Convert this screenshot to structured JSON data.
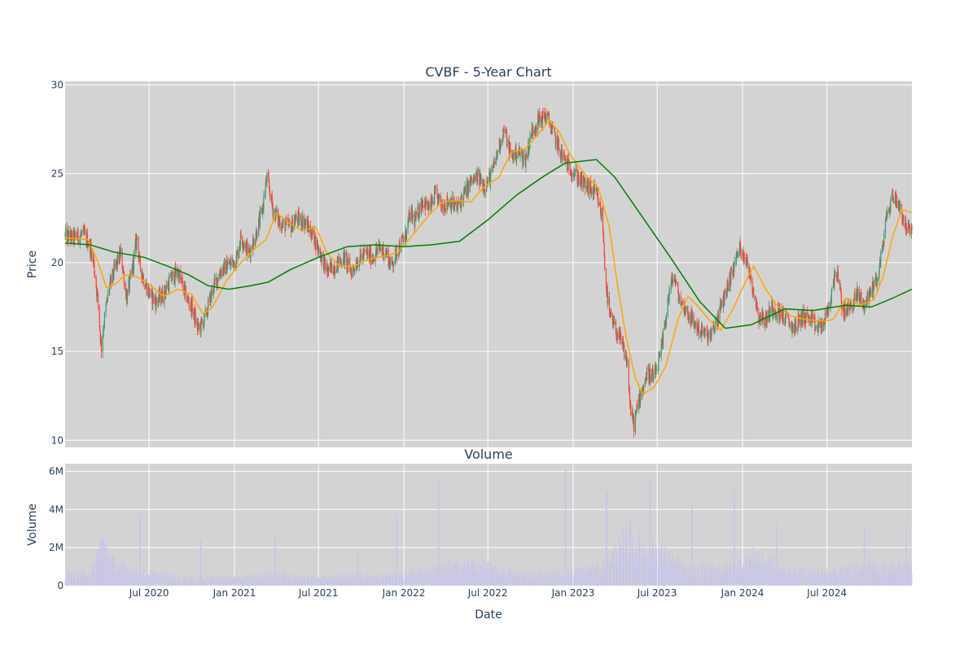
{
  "chart_data": [
    {
      "type": "candlestick",
      "title": "CVBF - 5-Year Chart",
      "xlabel": "",
      "ylabel": "Price",
      "ylim": [
        9.6,
        30.2
      ],
      "yticks": [
        10,
        15,
        20,
        25,
        30
      ],
      "grid": true,
      "colors": {
        "background": "#d3d3d3",
        "up": "#3d9970",
        "down": "#ff4136",
        "ma_short": "#ffa500",
        "ma_long": "#008000"
      },
      "price_path": [
        [
          "2020-01-02",
          21.5
        ],
        [
          "2020-01-20",
          21.4
        ],
        [
          "2020-02-10",
          21.6
        ],
        [
          "2020-02-20",
          21.2
        ],
        [
          "2020-03-01",
          20.5
        ],
        [
          "2020-03-12",
          18.0
        ],
        [
          "2020-03-20",
          15.2
        ],
        [
          "2020-03-25",
          16.5
        ],
        [
          "2020-04-05",
          18.5
        ],
        [
          "2020-04-20",
          19.8
        ],
        [
          "2020-05-01",
          20.5
        ],
        [
          "2020-05-14",
          18.0
        ],
        [
          "2020-05-25",
          19.5
        ],
        [
          "2020-06-05",
          21.5
        ],
        [
          "2020-06-10",
          20.0
        ],
        [
          "2020-06-20",
          19.0
        ],
        [
          "2020-07-01",
          18.3
        ],
        [
          "2020-07-15",
          17.8
        ],
        [
          "2020-08-01",
          18.2
        ],
        [
          "2020-08-15",
          19.0
        ],
        [
          "2020-09-01",
          19.5
        ],
        [
          "2020-09-20",
          18.0
        ],
        [
          "2020-10-01",
          17.5
        ],
        [
          "2020-10-15",
          16.2
        ],
        [
          "2020-10-28",
          16.8
        ],
        [
          "2020-11-05",
          17.5
        ],
        [
          "2020-11-15",
          18.5
        ],
        [
          "2020-12-01",
          19.5
        ],
        [
          "2020-12-15",
          19.8
        ],
        [
          "2021-01-05",
          20.2
        ],
        [
          "2021-01-15",
          21.5
        ],
        [
          "2021-02-01",
          20.5
        ],
        [
          "2021-02-15",
          21.5
        ],
        [
          "2021-03-01",
          22.8
        ],
        [
          "2021-03-12",
          24.8
        ],
        [
          "2021-03-25",
          23.0
        ],
        [
          "2021-04-10",
          22.2
        ],
        [
          "2021-05-01",
          22.0
        ],
        [
          "2021-05-15",
          22.5
        ],
        [
          "2021-06-01",
          22.3
        ],
        [
          "2021-06-20",
          21.5
        ],
        [
          "2021-07-05",
          20.5
        ],
        [
          "2021-07-20",
          19.5
        ],
        [
          "2021-08-05",
          19.8
        ],
        [
          "2021-08-25",
          20.3
        ],
        [
          "2021-09-10",
          19.5
        ],
        [
          "2021-09-25",
          20.2
        ],
        [
          "2021-10-10",
          20.5
        ],
        [
          "2021-10-25",
          20.3
        ],
        [
          "2021-11-10",
          20.8
        ],
        [
          "2021-11-25",
          20.5
        ],
        [
          "2021-12-05",
          19.8
        ],
        [
          "2021-12-20",
          20.8
        ],
        [
          "2022-01-05",
          21.5
        ],
        [
          "2022-01-15",
          22.8
        ],
        [
          "2022-01-25",
          22.3
        ],
        [
          "2022-02-10",
          23.5
        ],
        [
          "2022-02-25",
          23.0
        ],
        [
          "2022-03-10",
          23.8
        ],
        [
          "2022-03-25",
          23.2
        ],
        [
          "2022-04-10",
          23.5
        ],
        [
          "2022-04-25",
          23.0
        ],
        [
          "2022-05-10",
          23.8
        ],
        [
          "2022-05-25",
          24.5
        ],
        [
          "2022-06-10",
          24.8
        ],
        [
          "2022-06-25",
          24.3
        ],
        [
          "2022-07-10",
          25.0
        ],
        [
          "2022-07-25",
          26.5
        ],
        [
          "2022-08-05",
          27.5
        ],
        [
          "2022-08-20",
          26.0
        ],
        [
          "2022-09-05",
          26.2
        ],
        [
          "2022-09-20",
          25.8
        ],
        [
          "2022-10-05",
          27.5
        ],
        [
          "2022-10-20",
          28.0
        ],
        [
          "2022-11-05",
          28.3
        ],
        [
          "2022-11-20",
          27.2
        ],
        [
          "2022-12-05",
          26.2
        ],
        [
          "2022-12-20",
          25.5
        ],
        [
          "2023-01-05",
          25.0
        ],
        [
          "2023-01-20",
          24.5
        ],
        [
          "2023-02-05",
          24.2
        ],
        [
          "2023-02-20",
          23.8
        ],
        [
          "2023-03-05",
          22.5
        ],
        [
          "2023-03-12",
          19.0
        ],
        [
          "2023-03-20",
          17.0
        ],
        [
          "2023-04-01",
          16.3
        ],
        [
          "2023-04-15",
          15.5
        ],
        [
          "2023-04-28",
          14.3
        ],
        [
          "2023-05-05",
          11.5
        ],
        [
          "2023-05-12",
          10.9
        ],
        [
          "2023-05-25",
          12.5
        ],
        [
          "2023-06-10",
          13.8
        ],
        [
          "2023-06-25",
          13.5
        ],
        [
          "2023-07-10",
          15.0
        ],
        [
          "2023-07-25",
          18.0
        ],
        [
          "2023-08-05",
          19.3
        ],
        [
          "2023-08-20",
          17.8
        ],
        [
          "2023-09-05",
          17.2
        ],
        [
          "2023-09-20",
          16.5
        ],
        [
          "2023-10-10",
          16.0
        ],
        [
          "2023-10-25",
          15.8
        ],
        [
          "2023-11-10",
          17.0
        ],
        [
          "2023-11-25",
          18.3
        ],
        [
          "2023-12-10",
          19.5
        ],
        [
          "2023-12-25",
          20.8
        ],
        [
          "2024-01-05",
          20.5
        ],
        [
          "2024-01-20",
          19.0
        ],
        [
          "2024-02-05",
          17.0
        ],
        [
          "2024-02-20",
          16.8
        ],
        [
          "2024-03-05",
          17.5
        ],
        [
          "2024-03-20",
          17.2
        ],
        [
          "2024-04-05",
          16.8
        ],
        [
          "2024-04-20",
          16.3
        ],
        [
          "2024-05-10",
          17.0
        ],
        [
          "2024-05-25",
          16.8
        ],
        [
          "2024-06-10",
          16.3
        ],
        [
          "2024-06-25",
          16.6
        ],
        [
          "2024-07-10",
          18.0
        ],
        [
          "2024-07-20",
          19.8
        ],
        [
          "2024-08-05",
          17.2
        ],
        [
          "2024-08-20",
          17.5
        ],
        [
          "2024-09-05",
          18.2
        ],
        [
          "2024-09-20",
          17.6
        ],
        [
          "2024-10-05",
          18.5
        ],
        [
          "2024-10-20",
          19.3
        ],
        [
          "2024-11-06",
          22.5
        ],
        [
          "2024-11-20",
          23.8
        ],
        [
          "2024-12-05",
          23.2
        ],
        [
          "2024-12-15",
          22.2
        ],
        [
          "2024-12-31",
          21.6
        ]
      ],
      "moving_averages": [
        {
          "color": "#ffa500",
          "points": [
            [
              "2020-01-02",
              21.4
            ],
            [
              "2020-02-20",
              21.3
            ],
            [
              "2020-03-10",
              20.2
            ],
            [
              "2020-03-31",
              18.6
            ],
            [
              "2020-04-20",
              18.8
            ],
            [
              "2020-05-10",
              19.3
            ],
            [
              "2020-06-05",
              19.2
            ],
            [
              "2020-07-01",
              18.8
            ],
            [
              "2020-08-01",
              18.1
            ],
            [
              "2020-09-01",
              18.5
            ],
            [
              "2020-10-01",
              18.2
            ],
            [
              "2020-10-25",
              17.1
            ],
            [
              "2020-11-15",
              17.5
            ],
            [
              "2020-12-15",
              19.0
            ],
            [
              "2021-01-15",
              20.0
            ],
            [
              "2021-02-15",
              20.8
            ],
            [
              "2021-03-10",
              21.3
            ],
            [
              "2021-04-01",
              22.8
            ],
            [
              "2021-04-25",
              22.3
            ],
            [
              "2021-05-25",
              21.8
            ],
            [
              "2021-06-25",
              22.0
            ],
            [
              "2021-07-20",
              20.5
            ],
            [
              "2021-08-15",
              19.8
            ],
            [
              "2021-09-15",
              19.8
            ],
            [
              "2021-10-20",
              20.2
            ],
            [
              "2021-11-25",
              20.4
            ],
            [
              "2021-12-20",
              20.6
            ],
            [
              "2022-01-25",
              21.7
            ],
            [
              "2022-02-25",
              22.7
            ],
            [
              "2022-03-25",
              23.4
            ],
            [
              "2022-04-25",
              23.5
            ],
            [
              "2022-05-25",
              23.4
            ],
            [
              "2022-06-25",
              24.3
            ],
            [
              "2022-07-25",
              24.8
            ],
            [
              "2022-08-20",
              26.2
            ],
            [
              "2022-09-20",
              26.4
            ],
            [
              "2022-10-20",
              27.3
            ],
            [
              "2022-11-10",
              28.0
            ],
            [
              "2022-12-01",
              27.4
            ],
            [
              "2022-12-25",
              26.1
            ],
            [
              "2023-01-25",
              25.0
            ],
            [
              "2023-02-25",
              24.2
            ],
            [
              "2023-03-20",
              22.0
            ],
            [
              "2023-04-05",
              19.0
            ],
            [
              "2023-04-25",
              15.8
            ],
            [
              "2023-05-15",
              13.5
            ],
            [
              "2023-05-31",
              12.6
            ],
            [
              "2023-06-25",
              13.0
            ],
            [
              "2023-07-20",
              14.2
            ],
            [
              "2023-08-15",
              16.8
            ],
            [
              "2023-09-05",
              18.1
            ],
            [
              "2023-09-25",
              17.6
            ],
            [
              "2023-10-20",
              16.8
            ],
            [
              "2023-11-15",
              16.2
            ],
            [
              "2023-12-10",
              17.3
            ],
            [
              "2024-01-05",
              18.8
            ],
            [
              "2024-01-25",
              19.8
            ],
            [
              "2024-02-20",
              18.5
            ],
            [
              "2024-03-15",
              17.6
            ],
            [
              "2024-04-15",
              17.0
            ],
            [
              "2024-05-15",
              16.8
            ],
            [
              "2024-06-25",
              16.7
            ],
            [
              "2024-07-15",
              16.8
            ],
            [
              "2024-08-10",
              18.0
            ],
            [
              "2024-09-10",
              17.6
            ],
            [
              "2024-10-10",
              17.9
            ],
            [
              "2024-10-30",
              19.2
            ],
            [
              "2024-11-20",
              21.5
            ],
            [
              "2024-12-10",
              23.0
            ],
            [
              "2024-12-31",
              22.8
            ]
          ]
        },
        {
          "color": "#008000",
          "points": [
            [
              "2020-01-02",
              21.1
            ],
            [
              "2020-02-25",
              21.0
            ],
            [
              "2020-04-15",
              20.6
            ],
            [
              "2020-06-20",
              20.3
            ],
            [
              "2020-08-10",
              19.8
            ],
            [
              "2020-09-25",
              19.3
            ],
            [
              "2020-11-05",
              18.7
            ],
            [
              "2020-12-20",
              18.5
            ],
            [
              "2021-02-05",
              18.7
            ],
            [
              "2021-03-15",
              18.9
            ],
            [
              "2021-05-01",
              19.6
            ],
            [
              "2021-07-01",
              20.3
            ],
            [
              "2021-09-01",
              20.9
            ],
            [
              "2021-11-01",
              21.0
            ],
            [
              "2022-01-01",
              20.9
            ],
            [
              "2022-03-01",
              21.0
            ],
            [
              "2022-05-01",
              21.2
            ],
            [
              "2022-07-01",
              22.4
            ],
            [
              "2022-09-01",
              23.8
            ],
            [
              "2022-11-01",
              24.9
            ],
            [
              "2022-12-15",
              25.6
            ],
            [
              "2023-02-20",
              25.8
            ],
            [
              "2023-04-01",
              24.8
            ],
            [
              "2023-06-01",
              22.5
            ],
            [
              "2023-08-01",
              20.2
            ],
            [
              "2023-10-01",
              17.8
            ],
            [
              "2023-11-25",
              16.3
            ],
            [
              "2024-01-20",
              16.5
            ],
            [
              "2024-04-01",
              17.4
            ],
            [
              "2024-06-01",
              17.3
            ],
            [
              "2024-08-10",
              17.6
            ],
            [
              "2024-10-05",
              17.5
            ],
            [
              "2024-11-20",
              18.0
            ],
            [
              "2024-12-31",
              18.5
            ]
          ]
        }
      ]
    },
    {
      "type": "bar",
      "title": "Volume",
      "xlabel": "Date",
      "ylabel": "Volume",
      "ylim": [
        0,
        6400000
      ],
      "yticks": [
        0,
        2000000,
        4000000,
        6000000
      ],
      "ytick_labels": [
        "0",
        "2M",
        "4M",
        "6M"
      ],
      "x_range": [
        "2020-01-02",
        "2024-12-31"
      ],
      "xticks": [
        "2020-07-01",
        "2021-01-01",
        "2021-07-01",
        "2022-01-01",
        "2022-07-01",
        "2023-01-01",
        "2023-07-01",
        "2024-01-01",
        "2024-07-01"
      ],
      "xtick_labels": [
        "Jul 2020",
        "Jan 2021",
        "Jul 2021",
        "Jan 2022",
        "Jul 2022",
        "Jan 2023",
        "Jul 2023",
        "Jan 2024",
        "Jul 2024"
      ],
      "grid": true,
      "colors": {
        "background": "#d3d3d3",
        "bars": "#c8c6e6"
      },
      "base_volume": [
        [
          "2020-01-02",
          500000
        ],
        [
          "2020-03-01",
          700000
        ],
        [
          "2020-03-20",
          2300000
        ],
        [
          "2020-04-20",
          1000000
        ],
        [
          "2020-07-01",
          600000
        ],
        [
          "2020-10-01",
          350000
        ],
        [
          "2021-01-01",
          400000
        ],
        [
          "2021-03-15",
          500000
        ],
        [
          "2021-07-01",
          450000
        ],
        [
          "2021-12-01",
          500000
        ],
        [
          "2022-03-01",
          800000
        ],
        [
          "2022-06-01",
          1100000
        ],
        [
          "2022-09-01",
          550000
        ],
        [
          "2022-12-01",
          600000
        ],
        [
          "2023-03-01",
          900000
        ],
        [
          "2023-04-25",
          2200000
        ],
        [
          "2023-07-01",
          1800000
        ],
        [
          "2023-09-01",
          800000
        ],
        [
          "2023-12-01",
          900000
        ],
        [
          "2024-02-01",
          1500000
        ],
        [
          "2024-04-01",
          700000
        ],
        [
          "2024-07-01",
          700000
        ],
        [
          "2024-10-01",
          900000
        ],
        [
          "2024-12-31",
          1000000
        ]
      ],
      "volume_spikes": [
        [
          "2020-03-24",
          2500000
        ],
        [
          "2020-06-12",
          3800000
        ],
        [
          "2020-10-20",
          2400000
        ],
        [
          "2021-03-29",
          2700000
        ],
        [
          "2021-09-24",
          1900000
        ],
        [
          "2021-12-17",
          3700000
        ],
        [
          "2022-03-18",
          5500000
        ],
        [
          "2022-12-16",
          6100000
        ],
        [
          "2023-03-14",
          5000000
        ],
        [
          "2023-05-04",
          3400000
        ],
        [
          "2023-06-16",
          5500000
        ],
        [
          "2023-09-15",
          4200000
        ],
        [
          "2023-12-15",
          5100000
        ],
        [
          "2024-03-15",
          3300000
        ],
        [
          "2024-09-20",
          3100000
        ],
        [
          "2024-12-20",
          3200000
        ]
      ]
    }
  ]
}
